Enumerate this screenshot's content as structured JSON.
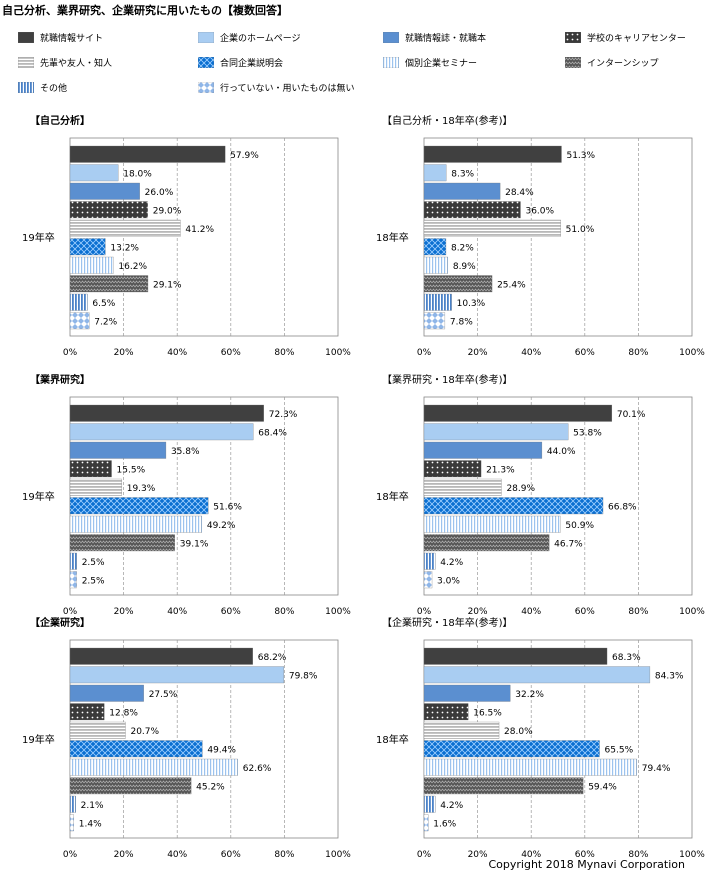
{
  "title": "自己分析、業界研究、企業研究に用いたもの【複数回答】",
  "copyright": "Copyright 2018  Mynavi Corporation",
  "legend": [
    {
      "name": "就職情報サイト",
      "pattern": "solid-dark"
    },
    {
      "name": "企業のホームページ",
      "pattern": "solid-light-blue"
    },
    {
      "name": "就職情報誌・就職本",
      "pattern": "solid-blue"
    },
    {
      "name": "学校のキャリアセンター",
      "pattern": "dots"
    },
    {
      "name": "先輩や友人・知人",
      "pattern": "hstripes"
    },
    {
      "name": "合同企業説明会",
      "pattern": "crosshatch-blue"
    },
    {
      "name": "個別企業セミナー",
      "pattern": "vstripes-light"
    },
    {
      "name": "インターンシップ",
      "pattern": "zigzag"
    },
    {
      "name": "その他",
      "pattern": "vstripes-blue"
    },
    {
      "name": "行っていない・用いたものは無い",
      "pattern": "diamonds"
    }
  ],
  "chart_data": [
    {
      "type": "bar",
      "title": "【自己分析】",
      "category": "19年卒",
      "xlim": [
        0,
        100
      ],
      "ticks": [
        "0%",
        "20%",
        "40%",
        "60%",
        "80%",
        "100%"
      ],
      "values": [
        57.9,
        18.0,
        26.0,
        29.0,
        41.2,
        13.2,
        16.2,
        29.1,
        6.5,
        7.2
      ]
    },
    {
      "type": "bar",
      "title": "【自己分析・18年卒(参考)】",
      "category": "18年卒",
      "xlim": [
        0,
        100
      ],
      "ticks": [
        "0%",
        "20%",
        "40%",
        "60%",
        "80%",
        "100%"
      ],
      "values": [
        51.3,
        8.3,
        28.4,
        36.0,
        51.0,
        8.2,
        8.9,
        25.4,
        10.3,
        7.8
      ]
    },
    {
      "type": "bar",
      "title": "【業界研究】",
      "category": "19年卒",
      "xlim": [
        0,
        100
      ],
      "ticks": [
        "0%",
        "20%",
        "40%",
        "60%",
        "80%",
        "100%"
      ],
      "values": [
        72.3,
        68.4,
        35.8,
        15.5,
        19.3,
        51.6,
        49.2,
        39.1,
        2.5,
        2.5
      ]
    },
    {
      "type": "bar",
      "title": "【業界研究・18年卒(参考)】",
      "category": "18年卒",
      "xlim": [
        0,
        100
      ],
      "ticks": [
        "0%",
        "20%",
        "40%",
        "60%",
        "80%",
        "100%"
      ],
      "values": [
        70.1,
        53.8,
        44.0,
        21.3,
        28.9,
        66.8,
        50.9,
        46.7,
        4.2,
        3.0
      ]
    },
    {
      "type": "bar",
      "title": "【企業研究】",
      "category": "19年卒",
      "xlim": [
        0,
        100
      ],
      "ticks": [
        "0%",
        "20%",
        "40%",
        "60%",
        "80%",
        "100%"
      ],
      "values": [
        68.2,
        79.8,
        27.5,
        12.8,
        20.7,
        49.4,
        62.6,
        45.2,
        2.1,
        1.4
      ]
    },
    {
      "type": "bar",
      "title": "【企業研究・18年卒(参考)】",
      "category": "18年卒",
      "xlim": [
        0,
        100
      ],
      "ticks": [
        "0%",
        "20%",
        "40%",
        "60%",
        "80%",
        "100%"
      ],
      "values": [
        68.3,
        84.3,
        32.2,
        16.5,
        28.0,
        65.5,
        79.4,
        59.4,
        4.2,
        1.6
      ]
    }
  ]
}
